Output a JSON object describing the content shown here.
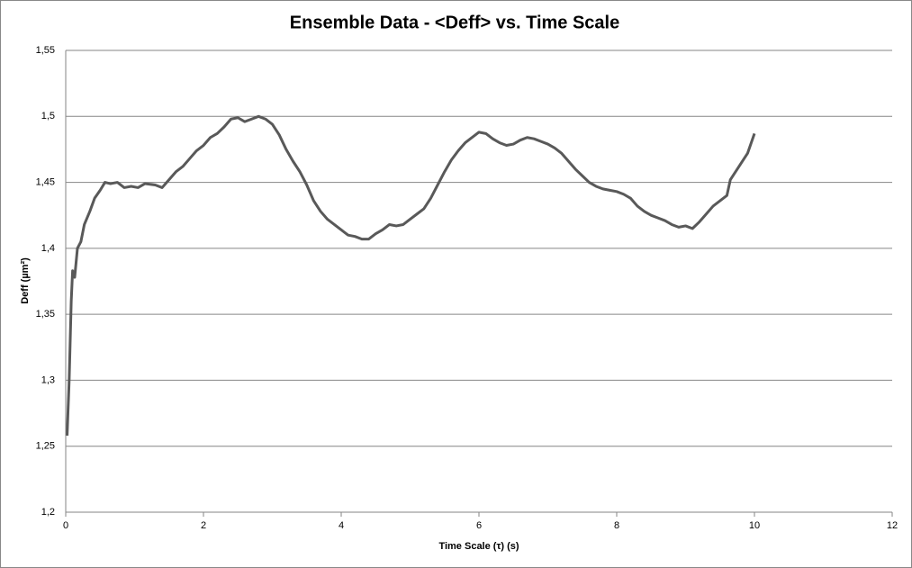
{
  "chart_data": {
    "type": "line",
    "title": "Ensemble Data - <Deff> vs. Time Scale",
    "x_label": "Time Scale  (τ) (s)",
    "y_label": "Deff (µm²)",
    "color": "#595959",
    "grid": true,
    "xlim": [
      0,
      12
    ],
    "xticks": [
      0,
      2,
      4,
      6,
      8,
      10,
      12
    ],
    "ylim": [
      1.2,
      1.55
    ],
    "yticks": [
      {
        "value": 1.2,
        "label": "1,2"
      },
      {
        "value": 1.25,
        "label": "1,25"
      },
      {
        "value": 1.3,
        "label": "1,3"
      },
      {
        "value": 1.35,
        "label": "1,35"
      },
      {
        "value": 1.4,
        "label": "1,4"
      },
      {
        "value": 1.45,
        "label": "1,45"
      },
      {
        "value": 1.5,
        "label": "1,5"
      },
      {
        "value": 1.55,
        "label": "1,55"
      }
    ],
    "x": [
      0.02,
      0.05,
      0.08,
      0.1,
      0.13,
      0.17,
      0.22,
      0.27,
      0.35,
      0.42,
      0.5,
      0.57,
      0.65,
      0.75,
      0.85,
      0.95,
      1.05,
      1.15,
      1.3,
      1.4,
      1.5,
      1.6,
      1.7,
      1.8,
      1.9,
      2.0,
      2.1,
      2.2,
      2.3,
      2.4,
      2.5,
      2.6,
      2.7,
      2.8,
      2.9,
      3.0,
      3.1,
      3.2,
      3.3,
      3.4,
      3.5,
      3.6,
      3.7,
      3.8,
      3.9,
      4.0,
      4.1,
      4.2,
      4.3,
      4.4,
      4.5,
      4.6,
      4.7,
      4.8,
      4.9,
      5.0,
      5.1,
      5.2,
      5.3,
      5.4,
      5.5,
      5.6,
      5.7,
      5.8,
      5.9,
      6.0,
      6.1,
      6.2,
      6.3,
      6.4,
      6.5,
      6.6,
      6.7,
      6.8,
      6.9,
      7.0,
      7.1,
      7.2,
      7.3,
      7.4,
      7.5,
      7.6,
      7.7,
      7.8,
      7.9,
      8.0,
      8.1,
      8.2,
      8.3,
      8.4,
      8.5,
      8.6,
      8.7,
      8.8,
      8.9,
      9.0,
      9.1,
      9.2,
      9.3,
      9.4,
      9.5,
      9.6,
      9.65,
      9.7,
      9.8,
      9.9,
      10.0
    ],
    "values": [
      1.258,
      1.3,
      1.36,
      1.383,
      1.378,
      1.4,
      1.405,
      1.418,
      1.428,
      1.438,
      1.444,
      1.45,
      1.449,
      1.45,
      1.446,
      1.447,
      1.446,
      1.449,
      1.448,
      1.446,
      1.452,
      1.458,
      1.462,
      1.468,
      1.474,
      1.478,
      1.484,
      1.487,
      1.492,
      1.498,
      1.499,
      1.496,
      1.498,
      1.5,
      1.498,
      1.494,
      1.486,
      1.475,
      1.466,
      1.458,
      1.448,
      1.436,
      1.428,
      1.422,
      1.418,
      1.414,
      1.41,
      1.409,
      1.407,
      1.407,
      1.411,
      1.414,
      1.418,
      1.417,
      1.418,
      1.422,
      1.426,
      1.43,
      1.438,
      1.448,
      1.458,
      1.467,
      1.474,
      1.48,
      1.484,
      1.488,
      1.487,
      1.483,
      1.48,
      1.478,
      1.479,
      1.482,
      1.484,
      1.483,
      1.481,
      1.479,
      1.476,
      1.472,
      1.466,
      1.46,
      1.455,
      1.45,
      1.447,
      1.445,
      1.444,
      1.443,
      1.441,
      1.438,
      1.432,
      1.428,
      1.425,
      1.423,
      1.421,
      1.418,
      1.416,
      1.417,
      1.415,
      1.42,
      1.426,
      1.432,
      1.436,
      1.44,
      1.452,
      1.456,
      1.464,
      1.472,
      1.487
    ]
  }
}
